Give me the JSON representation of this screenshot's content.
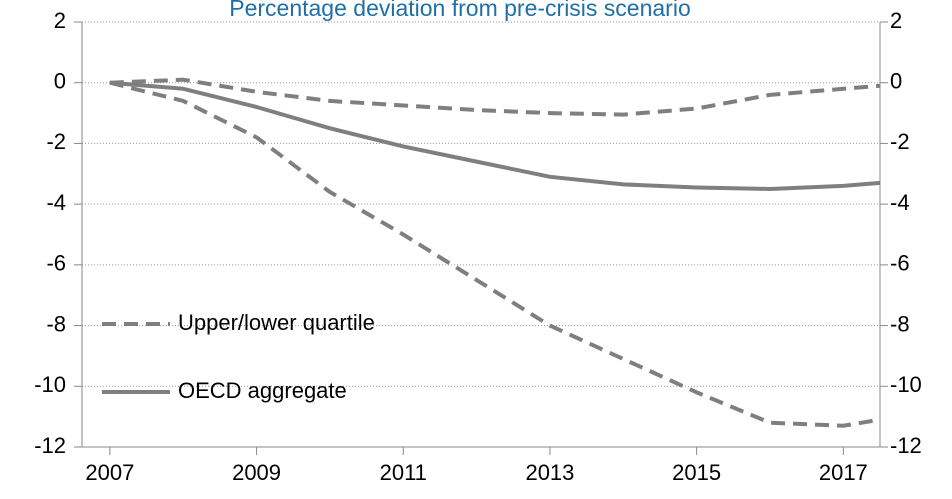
{
  "chart_data": {
    "type": "line",
    "title": "Percentage deviation from pre-crisis scenario",
    "x": [
      2007,
      2008,
      2009,
      2010,
      2011,
      2012,
      2013,
      2014,
      2015,
      2016,
      2017,
      2017.5
    ],
    "xlim": [
      2006.62,
      2017.5
    ],
    "xticks": [
      2007,
      2009,
      2011,
      2013,
      2015,
      2017
    ],
    "ylim": [
      -12,
      2
    ],
    "yticks": [
      -12,
      -10,
      -8,
      -6,
      -4,
      -2,
      0,
      2
    ],
    "y2lim": [
      -12,
      2
    ],
    "y2ticks": [
      -12,
      -10,
      -8,
      -6,
      -4,
      -2,
      0,
      2
    ],
    "grid": true,
    "legend": "lower-left",
    "series": [
      {
        "name": "Upper/lower quartile",
        "color": "#7f7f7f",
        "dashed": true,
        "values": [
          0,
          0.1,
          -0.3,
          -0.6,
          -0.75,
          -0.9,
          -1.0,
          -1.05,
          -0.85,
          -0.4,
          -0.2,
          -0.1
        ],
        "lower_values": [
          0,
          -0.6,
          -1.8,
          -3.6,
          -5.0,
          -6.5,
          -8.0,
          -9.1,
          -10.2,
          -11.2,
          -11.3,
          -11.1
        ]
      },
      {
        "name": "OECD aggregate",
        "color": "#7f7f7f",
        "dashed": false,
        "values": [
          0,
          -0.2,
          -0.8,
          -1.5,
          -2.1,
          -2.6,
          -3.1,
          -3.35,
          -3.45,
          -3.5,
          -3.4,
          -3.3
        ]
      }
    ]
  }
}
